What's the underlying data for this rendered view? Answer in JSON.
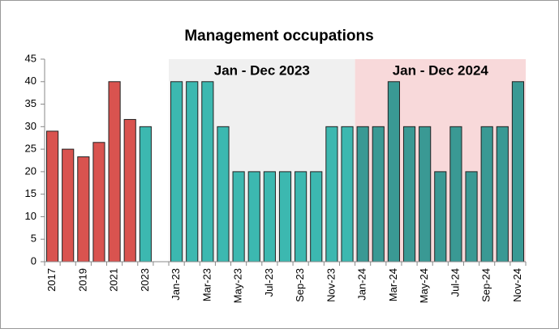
{
  "chart_data": {
    "type": "bar",
    "title": "Management occupations",
    "categories": [
      "2017",
      null,
      "2019",
      null,
      "2021",
      null,
      "2023",
      null,
      "Jan-23",
      null,
      "Mar-23",
      null,
      "May-23",
      null,
      "Jul-23",
      null,
      "Sep-23",
      null,
      "Nov-23",
      null,
      "Jan-24",
      null,
      "Mar-24",
      null,
      "May-24",
      null,
      "Jul-24",
      null,
      "Sep-24",
      null,
      "Nov-24"
    ],
    "values": [
      29,
      25,
      23.3,
      26.5,
      40,
      31.6,
      30,
      null,
      40,
      40,
      40,
      30,
      20,
      20,
      20,
      20,
      20,
      20,
      30,
      30,
      30,
      30,
      40,
      30,
      30,
      20,
      30,
      20,
      30,
      30,
      40
    ],
    "colors": [
      "#d9534f",
      "#d9534f",
      "#d9534f",
      "#d9534f",
      "#d9534f",
      "#d9534f",
      "#3cb8b0",
      null,
      "#3cb8b0",
      "#3cb8b0",
      "#3cb8b0",
      "#3cb8b0",
      "#3cb8b0",
      "#3cb8b0",
      "#3cb8b0",
      "#3cb8b0",
      "#3cb8b0",
      "#3cb8b0",
      "#3cb8b0",
      "#3cb8b0",
      "#3a9994",
      "#3a9994",
      "#3a9994",
      "#3a9994",
      "#3a9994",
      "#3a9994",
      "#3a9994",
      "#3a9994",
      "#3a9994",
      "#3a9994",
      "#3a9994"
    ],
    "highlights": [
      {
        "label": "Jan - Dec 2023",
        "color": "#f0f0f0"
      },
      {
        "label": "Jan - Dec 2024",
        "color": "#f8d9da"
      }
    ],
    "ylim": [
      0,
      45
    ],
    "yticks": [
      0,
      5,
      10,
      15,
      20,
      25,
      30,
      35,
      40,
      45
    ],
    "grid": false
  }
}
